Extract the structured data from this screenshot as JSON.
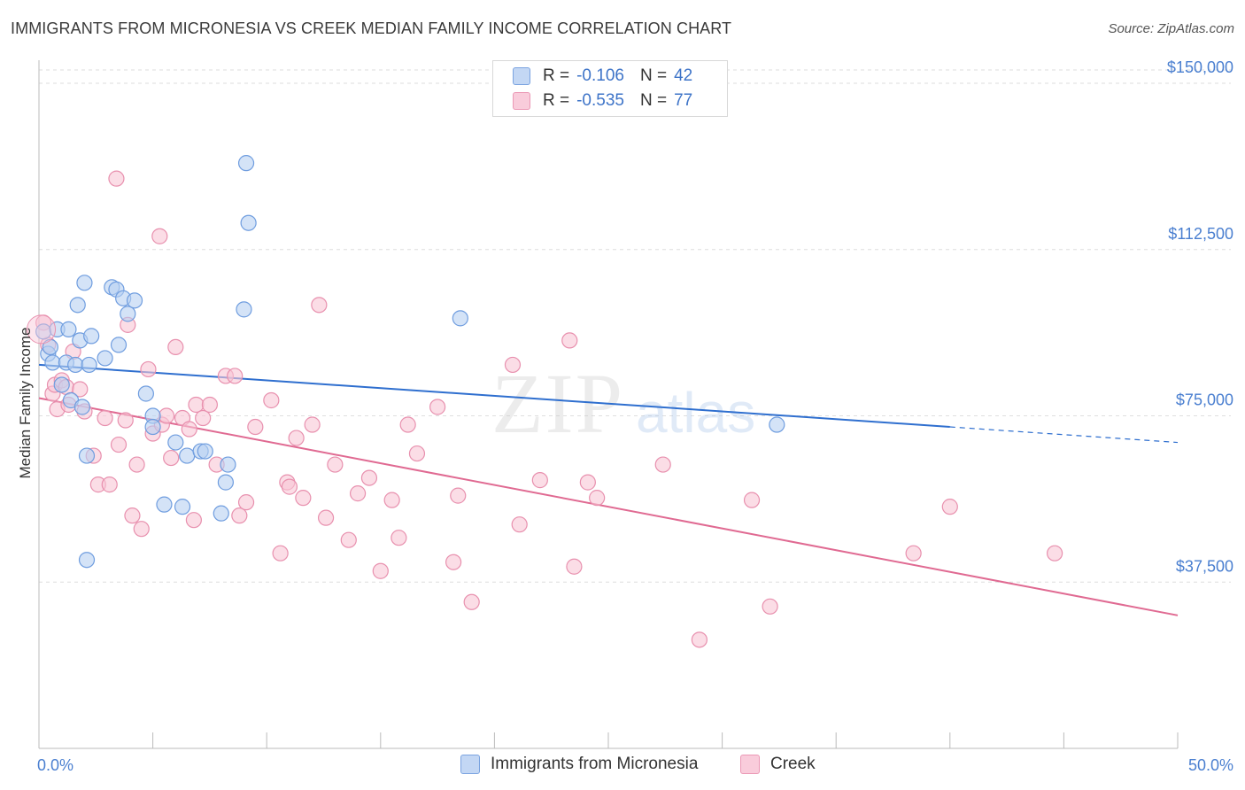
{
  "title": "IMMIGRANTS FROM MICRONESIA VS CREEK MEDIAN FAMILY INCOME CORRELATION CHART",
  "source": "Source: ZipAtlas.com",
  "watermark": {
    "zip": "ZIP",
    "atlas": "atlas"
  },
  "legend_top": {
    "rows": [
      {
        "r_label": "R =",
        "r_value": "-0.106",
        "n_label": "N =",
        "n_value": "42"
      },
      {
        "r_label": "R =",
        "r_value": "-0.535",
        "n_label": "N =",
        "n_value": "77"
      }
    ]
  },
  "legend_bottom": {
    "items": [
      "Immigrants from Micronesia",
      "Creek"
    ]
  },
  "colors": {
    "blue_fill": "#b8d0f2",
    "blue_stroke": "#6f9ddf",
    "blue_line": "#2f6fcf",
    "pink_fill": "#f8c6d6",
    "pink_stroke": "#e890ae",
    "pink_line": "#e06a92",
    "grid": "#dedede",
    "axis_text": "#4a7fd0"
  },
  "chart_data": {
    "type": "scatter",
    "title": "IMMIGRANTS FROM MICRONESIA VS CREEK MEDIAN FAMILY INCOME CORRELATION CHART",
    "xlabel": "",
    "ylabel": "Median Family Income",
    "xlim": [
      0,
      50
    ],
    "ylim": [
      0,
      153000
    ],
    "x_tick_labels": [
      "0.0%",
      "50.0%"
    ],
    "y_ticks": [
      37500,
      75000,
      112500,
      150000
    ],
    "y_tick_labels": [
      "$37,500",
      "$75,000",
      "$112,500",
      "$150,000"
    ],
    "grid": true,
    "series": [
      {
        "name": "Immigrants from Micronesia",
        "points": [
          [
            0.2,
            94000
          ],
          [
            0.4,
            89000
          ],
          [
            0.5,
            90500
          ],
          [
            0.6,
            87000
          ],
          [
            0.8,
            94500
          ],
          [
            1.0,
            82000
          ],
          [
            1.2,
            87000
          ],
          [
            1.3,
            94500
          ],
          [
            1.4,
            78500
          ],
          [
            1.6,
            86500
          ],
          [
            1.7,
            100000
          ],
          [
            1.8,
            92000
          ],
          [
            1.9,
            77000
          ],
          [
            2.0,
            105000
          ],
          [
            2.1,
            66000
          ],
          [
            2.2,
            86500
          ],
          [
            2.3,
            93000
          ],
          [
            2.9,
            88000
          ],
          [
            3.2,
            104000
          ],
          [
            3.4,
            103500
          ],
          [
            3.7,
            101500
          ],
          [
            3.5,
            91000
          ],
          [
            3.9,
            98000
          ],
          [
            4.2,
            101000
          ],
          [
            4.7,
            80000
          ],
          [
            5.0,
            75000
          ],
          [
            5.0,
            72500
          ],
          [
            5.5,
            55000
          ],
          [
            6.0,
            69000
          ],
          [
            6.5,
            66000
          ],
          [
            6.3,
            54500
          ],
          [
            7.1,
            67000
          ],
          [
            7.3,
            67000
          ],
          [
            8.0,
            53000
          ],
          [
            8.2,
            60000
          ],
          [
            8.3,
            64000
          ],
          [
            9.0,
            99000
          ],
          [
            9.1,
            132000
          ],
          [
            9.2,
            118500
          ],
          [
            18.5,
            97000
          ],
          [
            32.4,
            73000
          ],
          [
            2.1,
            42500
          ]
        ]
      },
      {
        "name": "Creek",
        "points": [
          [
            0.2,
            96000
          ],
          [
            0.4,
            91000
          ],
          [
            0.6,
            80000
          ],
          [
            0.7,
            82000
          ],
          [
            0.8,
            76500
          ],
          [
            1.0,
            83000
          ],
          [
            1.2,
            81500
          ],
          [
            1.3,
            77500
          ],
          [
            1.5,
            89500
          ],
          [
            1.8,
            81000
          ],
          [
            2.0,
            76000
          ],
          [
            2.4,
            66000
          ],
          [
            2.6,
            59500
          ],
          [
            2.9,
            74500
          ],
          [
            3.1,
            59500
          ],
          [
            3.4,
            128500
          ],
          [
            3.5,
            68500
          ],
          [
            3.8,
            74000
          ],
          [
            3.9,
            95500
          ],
          [
            4.1,
            52500
          ],
          [
            4.3,
            64000
          ],
          [
            4.5,
            49500
          ],
          [
            4.8,
            85500
          ],
          [
            5.0,
            71000
          ],
          [
            5.3,
            115500
          ],
          [
            5.4,
            73000
          ],
          [
            5.6,
            75000
          ],
          [
            5.8,
            65500
          ],
          [
            6.0,
            90500
          ],
          [
            6.3,
            74500
          ],
          [
            6.6,
            72000
          ],
          [
            6.9,
            77500
          ],
          [
            6.8,
            51500
          ],
          [
            7.2,
            74500
          ],
          [
            7.5,
            77500
          ],
          [
            7.8,
            64000
          ],
          [
            8.2,
            84000
          ],
          [
            8.6,
            84000
          ],
          [
            8.8,
            52500
          ],
          [
            9.1,
            55500
          ],
          [
            9.5,
            72500
          ],
          [
            10.2,
            78500
          ],
          [
            10.6,
            44000
          ],
          [
            10.9,
            60000
          ],
          [
            11.0,
            59000
          ],
          [
            11.3,
            70000
          ],
          [
            11.6,
            56500
          ],
          [
            12.0,
            73000
          ],
          [
            12.3,
            100000
          ],
          [
            12.6,
            52000
          ],
          [
            13.0,
            64000
          ],
          [
            13.6,
            47000
          ],
          [
            14.0,
            57500
          ],
          [
            14.5,
            61000
          ],
          [
            15.0,
            40000
          ],
          [
            15.5,
            56000
          ],
          [
            15.8,
            47500
          ],
          [
            16.2,
            73000
          ],
          [
            16.6,
            66500
          ],
          [
            17.5,
            77000
          ],
          [
            18.2,
            42000
          ],
          [
            18.4,
            57000
          ],
          [
            19.0,
            33000
          ],
          [
            20.8,
            86500
          ],
          [
            21.1,
            50500
          ],
          [
            22.0,
            60500
          ],
          [
            23.3,
            92000
          ],
          [
            23.5,
            41000
          ],
          [
            24.1,
            60000
          ],
          [
            24.5,
            56500
          ],
          [
            27.4,
            64000
          ],
          [
            29.0,
            24500
          ],
          [
            31.3,
            56000
          ],
          [
            32.1,
            32000
          ],
          [
            38.4,
            44000
          ],
          [
            40.0,
            54500
          ],
          [
            44.6,
            44000
          ]
        ]
      }
    ],
    "trend_lines": [
      {
        "series": "Immigrants from Micronesia",
        "solid": [
          [
            0,
            86500
          ],
          [
            40,
            72500
          ]
        ],
        "dashed": [
          [
            40,
            72500
          ],
          [
            50,
            69000
          ]
        ]
      },
      {
        "series": "Creek",
        "solid": [
          [
            0,
            79000
          ],
          [
            50,
            30000
          ]
        ]
      }
    ]
  }
}
